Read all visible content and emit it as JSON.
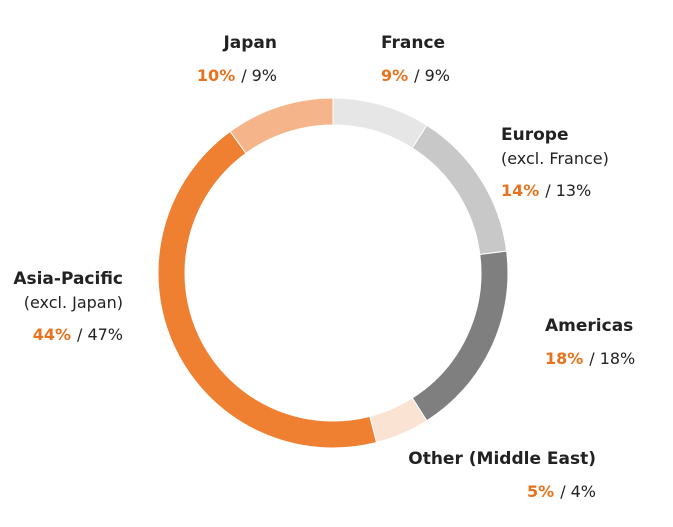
{
  "chart_data": {
    "type": "donut",
    "categories": [
      "France",
      "Europe",
      "Americas",
      "Other (Middle East)",
      "Asia-Pacific",
      "Japan"
    ],
    "sublabels": [
      null,
      "(excl. France)",
      null,
      null,
      "(excl. Japan)",
      null
    ],
    "colors": [
      "#e6e6e6",
      "#c8c8c8",
      "#7f7f7f",
      "#fbe3d4",
      "#ef7f31",
      "#f5b48a"
    ],
    "separator": "/",
    "series": [
      {
        "color": "#e8731e",
        "values": [
          9,
          14,
          18,
          5,
          44,
          10
        ],
        "value_labels": [
          "9%",
          "14%",
          "18%",
          "5%",
          "44%",
          "10%"
        ]
      },
      {
        "color": "#222222",
        "values": [
          9,
          13,
          18,
          4,
          47,
          9
        ],
        "value_labels": [
          "9%",
          "13%",
          "18%",
          "4%",
          "47%",
          "9%"
        ]
      }
    ]
  }
}
